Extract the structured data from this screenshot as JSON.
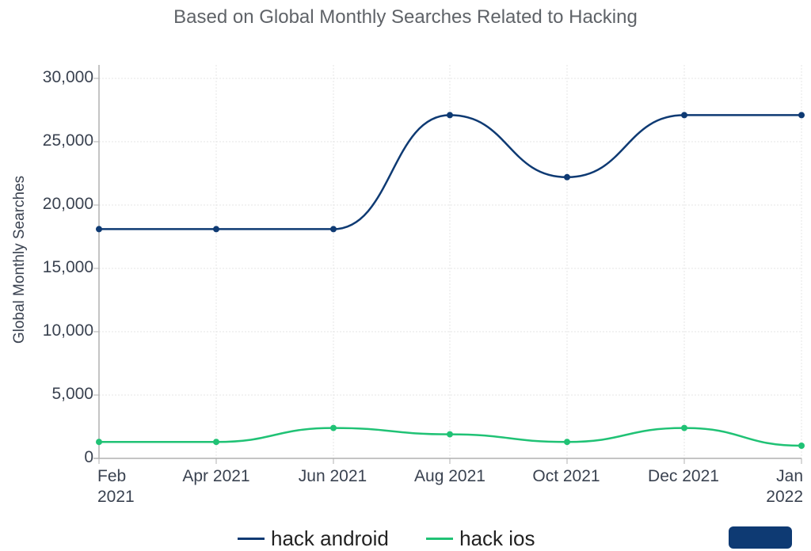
{
  "chart": {
    "title_visible": false,
    "subtitle": "Based on Global Monthly Searches Related to Hacking",
    "y_axis_title": "Global Monthly Searches",
    "y_ticks": [
      "30,000",
      "25,000",
      "20,000",
      "15,000",
      "10,000",
      "5,000",
      "0"
    ],
    "x_ticks": [
      {
        "line1": "Feb",
        "line2": "2021"
      },
      {
        "line1": "Apr 2021",
        "line2": ""
      },
      {
        "line1": "Jun 2021",
        "line2": ""
      },
      {
        "line1": "Aug 2021",
        "line2": ""
      },
      {
        "line1": "Oct 2021",
        "line2": ""
      },
      {
        "line1": "Dec 2021",
        "line2": ""
      },
      {
        "line1": "Jan",
        "line2": "2022"
      }
    ],
    "legend": [
      {
        "label": "hack android",
        "color": "#0e3a73"
      },
      {
        "label": "hack ios",
        "color": "#20c275"
      }
    ]
  },
  "chart_data": {
    "type": "line",
    "title": "",
    "subtitle": "Based on Global Monthly Searches Related to Hacking",
    "xlabel": "",
    "ylabel": "Global Monthly Searches",
    "ylim": [
      0,
      30000
    ],
    "grid": true,
    "legend_position": "bottom",
    "x": [
      "Feb 2021",
      "Apr 2021",
      "Jun 2021",
      "Aug 2021",
      "Oct 2021",
      "Dec 2021",
      "Jan 2022"
    ],
    "series": [
      {
        "name": "hack android",
        "color": "#0e3a73",
        "values": [
          18100,
          18100,
          18100,
          27100,
          22200,
          27100,
          27100
        ]
      },
      {
        "name": "hack ios",
        "color": "#20c275",
        "values": [
          1300,
          1300,
          2400,
          1900,
          1300,
          2400,
          1000
        ]
      }
    ]
  }
}
